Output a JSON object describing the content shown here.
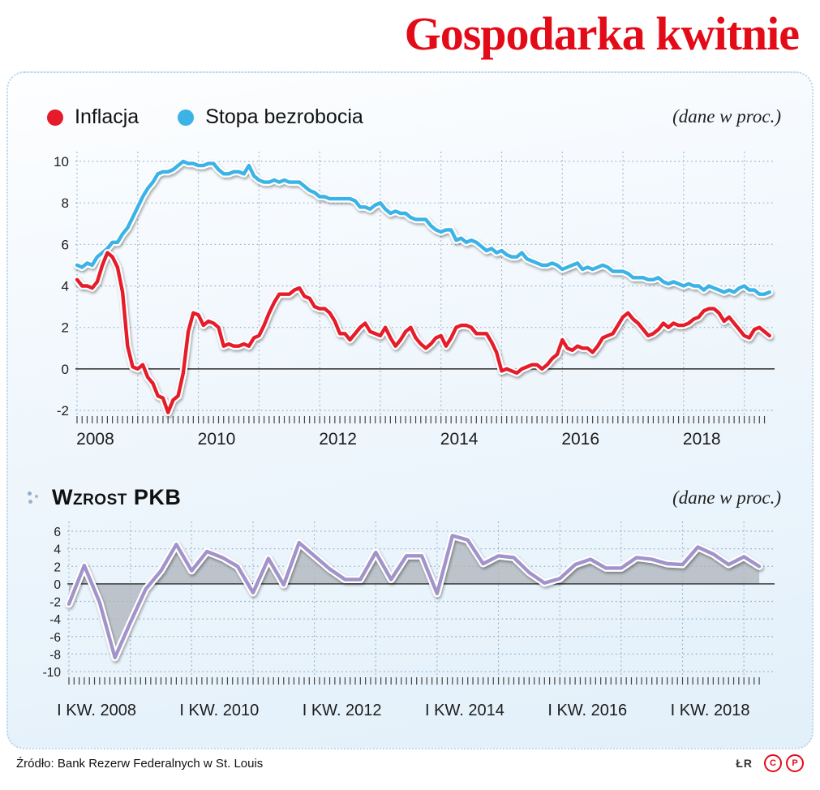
{
  "header": {
    "title": "Gospodarka kwitnie"
  },
  "legend": {
    "items": [
      {
        "label": "Inflacja",
        "color": "#e51a2b"
      },
      {
        "label": "Stopa bezrobocia",
        "color": "#3bb3e6"
      }
    ]
  },
  "top_chart_note": "(dane w proc.)",
  "section2": {
    "title": "Wzrost PKB",
    "note": "(dane w proc.)"
  },
  "footer": {
    "source": "Źródło: Bank Rezerw Federalnych w St. Louis",
    "credit": "ŁR",
    "badge1": "C",
    "badge2": "P"
  },
  "colors": {
    "accent_red": "#e30b17",
    "inflation_line": "#e51a2b",
    "unemployment_line": "#3bb3e6",
    "gdp_line": "#a294ca",
    "gdp_fill": "rgba(176,181,189,0.78)",
    "grid": "#94aec5"
  },
  "chart_data": [
    {
      "type": "line",
      "title": "Inflacja i stopa bezrobocia",
      "ylabel": "proc.",
      "x_start": 2008.0,
      "x_step": 0.0833333,
      "xlim": [
        2008,
        2019.5
      ],
      "ylim": [
        -2,
        10
      ],
      "yticks": [
        10,
        8,
        6,
        4,
        2,
        0,
        -2
      ],
      "xtick_years": [
        2008,
        2010,
        2012,
        2014,
        2016,
        2018
      ],
      "xticklabels": [
        "2008",
        "2010",
        "2012",
        "2014",
        "2016",
        "2018"
      ],
      "grid": true,
      "legend_position": "top-left",
      "series": [
        {
          "name": "Stopa bezrobocia",
          "color": "#3bb3e6",
          "values": [
            5.0,
            4.9,
            5.1,
            5.0,
            5.4,
            5.6,
            5.8,
            6.1,
            6.1,
            6.5,
            6.8,
            7.3,
            7.8,
            8.3,
            8.7,
            9.0,
            9.4,
            9.5,
            9.5,
            9.6,
            9.8,
            10.0,
            9.9,
            9.9,
            9.8,
            9.8,
            9.9,
            9.9,
            9.6,
            9.4,
            9.4,
            9.5,
            9.5,
            9.4,
            9.8,
            9.3,
            9.1,
            9.0,
            9.0,
            9.1,
            9.0,
            9.1,
            9.0,
            9.0,
            9.0,
            8.8,
            8.6,
            8.5,
            8.3,
            8.3,
            8.2,
            8.2,
            8.2,
            8.2,
            8.2,
            8.1,
            7.8,
            7.8,
            7.7,
            7.9,
            8.0,
            7.7,
            7.5,
            7.6,
            7.5,
            7.5,
            7.3,
            7.2,
            7.2,
            7.2,
            6.9,
            6.7,
            6.6,
            6.7,
            6.7,
            6.2,
            6.3,
            6.1,
            6.2,
            6.1,
            5.9,
            5.7,
            5.8,
            5.6,
            5.7,
            5.5,
            5.4,
            5.4,
            5.6,
            5.3,
            5.2,
            5.1,
            5.0,
            5.0,
            5.1,
            5.0,
            4.8,
            4.9,
            5.0,
            5.1,
            4.8,
            4.9,
            4.8,
            4.9,
            5.0,
            4.9,
            4.7,
            4.7,
            4.7,
            4.6,
            4.4,
            4.4,
            4.4,
            4.3,
            4.3,
            4.4,
            4.2,
            4.1,
            4.2,
            4.1,
            4.0,
            4.1,
            4.0,
            4.0,
            3.8,
            4.0,
            3.9,
            3.8,
            3.7,
            3.8,
            3.7,
            3.9,
            4.0,
            3.8,
            3.8,
            3.6,
            3.6,
            3.7
          ]
        },
        {
          "name": "Inflacja",
          "color": "#e51a2b",
          "values": [
            4.3,
            4.0,
            4.0,
            3.9,
            4.2,
            5.0,
            5.6,
            5.4,
            4.9,
            3.7,
            1.1,
            0.1,
            0.0,
            0.2,
            -0.4,
            -0.7,
            -1.3,
            -1.4,
            -2.1,
            -1.5,
            -1.3,
            -0.2,
            1.8,
            2.7,
            2.6,
            2.1,
            2.3,
            2.2,
            2.0,
            1.1,
            1.2,
            1.1,
            1.1,
            1.2,
            1.1,
            1.5,
            1.6,
            2.1,
            2.7,
            3.2,
            3.6,
            3.6,
            3.6,
            3.8,
            3.9,
            3.5,
            3.4,
            3.0,
            2.9,
            2.9,
            2.7,
            2.3,
            1.7,
            1.7,
            1.4,
            1.7,
            2.0,
            2.2,
            1.8,
            1.7,
            1.6,
            2.0,
            1.5,
            1.1,
            1.4,
            1.8,
            2.0,
            1.5,
            1.2,
            1.0,
            1.2,
            1.5,
            1.6,
            1.1,
            1.5,
            2.0,
            2.1,
            2.1,
            2.0,
            1.7,
            1.7,
            1.7,
            1.3,
            0.8,
            -0.1,
            0.0,
            -0.1,
            -0.2,
            0.0,
            0.1,
            0.2,
            0.2,
            0.0,
            0.2,
            0.5,
            0.7,
            1.4,
            1.0,
            0.9,
            1.1,
            1.0,
            1.0,
            0.8,
            1.1,
            1.5,
            1.6,
            1.7,
            2.1,
            2.5,
            2.7,
            2.4,
            2.2,
            1.9,
            1.6,
            1.7,
            1.9,
            2.2,
            2.0,
            2.2,
            2.1,
            2.1,
            2.2,
            2.4,
            2.5,
            2.8,
            2.9,
            2.9,
            2.7,
            2.3,
            2.5,
            2.2,
            1.9,
            1.6,
            1.5,
            1.9,
            2.0,
            1.8,
            1.6
          ]
        }
      ]
    },
    {
      "type": "area",
      "title": "Wzrost PKB",
      "ylabel": "proc.",
      "x_start": 2008.0,
      "x_step": 0.25,
      "xlim": [
        2008,
        2019.5
      ],
      "ylim": [
        -10,
        6
      ],
      "yticks": [
        6,
        4,
        2,
        0,
        -2,
        -4,
        -6,
        -8,
        -10
      ],
      "xtick_years": [
        2008,
        2010,
        2012,
        2014,
        2016,
        2018
      ],
      "xticklabels": [
        "I KW. 2008",
        "I KW. 2010",
        "I KW. 2012",
        "I KW. 2014",
        "I KW. 2016",
        "I KW. 2018"
      ],
      "grid": true,
      "series": [
        {
          "name": "Wzrost PKB",
          "color": "#a294ca",
          "fill": "rgba(176,181,189,0.78)",
          "values": [
            -2.3,
            2.1,
            -2.1,
            -8.4,
            -4.4,
            -0.6,
            1.5,
            4.5,
            1.5,
            3.7,
            3.0,
            2.0,
            -1.0,
            2.9,
            -0.1,
            4.7,
            3.2,
            1.7,
            0.5,
            0.5,
            3.6,
            0.5,
            3.2,
            3.2,
            -1.1,
            5.5,
            5.0,
            2.3,
            3.2,
            3.0,
            1.3,
            0.1,
            0.6,
            2.2,
            2.8,
            1.8,
            1.8,
            3.0,
            2.8,
            2.3,
            2.2,
            4.2,
            3.4,
            2.2,
            3.1,
            2.0
          ]
        }
      ]
    }
  ]
}
